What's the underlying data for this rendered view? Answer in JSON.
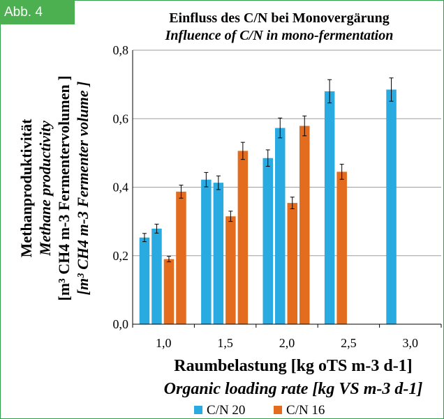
{
  "badge": "Abb. 4",
  "colors": {
    "cn20": "#29abe2",
    "cn16": "#e36c1e",
    "badge": "#4caf50",
    "grid": "#9e9e9e"
  },
  "chart_data": {
    "type": "bar",
    "title": "Einfluss des C/N bei Monovergärung",
    "subtitle": "Influence of C/N in mono-fermentation",
    "xlabel": "Raumbelastung [kg oTS m-3 d-1]",
    "xlabel_en": "Organic loading rate [kg VS m-3 d-1]",
    "ylabel": "Methanproduktivität",
    "ylabel_en": "Methane productivity",
    "yunit": "[m³ CH4 m-3 Fermentervolumen ]",
    "yunit_en": "[m³ CH4 m-3 Fermenter volume ]",
    "categories": [
      "1,0",
      "1,5",
      "2,0",
      "2,5",
      "3,0"
    ],
    "yticks": [
      "0,0",
      "0,2",
      "0,4",
      "0,6",
      "0,8"
    ],
    "ylim": [
      0,
      0.8
    ],
    "grid": true,
    "legend_position": "bottom",
    "series": [
      {
        "name": "C/N 20"
      },
      {
        "name": "C/N 16"
      }
    ],
    "bars": [
      {
        "category": "1,0",
        "series": "C/N 20",
        "value": 0.253,
        "error": 0.012
      },
      {
        "category": "1,0",
        "series": "C/N 20",
        "value": 0.279,
        "error": 0.013
      },
      {
        "category": "1,0",
        "series": "C/N 16",
        "value": 0.19,
        "error": 0.008
      },
      {
        "category": "1,0",
        "series": "C/N 16",
        "value": 0.387,
        "error": 0.019
      },
      {
        "category": "1,5",
        "series": "C/N 20",
        "value": 0.422,
        "error": 0.021
      },
      {
        "category": "1,5",
        "series": "C/N 20",
        "value": 0.413,
        "error": 0.02
      },
      {
        "category": "1,5",
        "series": "C/N 16",
        "value": 0.315,
        "error": 0.015
      },
      {
        "category": "1,5",
        "series": "C/N 16",
        "value": 0.506,
        "error": 0.025
      },
      {
        "category": "2,0",
        "series": "C/N 20",
        "value": 0.485,
        "error": 0.024
      },
      {
        "category": "2,0",
        "series": "C/N 20",
        "value": 0.573,
        "error": 0.029
      },
      {
        "category": "2,0",
        "series": "C/N 16",
        "value": 0.354,
        "error": 0.017
      },
      {
        "category": "2,0",
        "series": "C/N 16",
        "value": 0.579,
        "error": 0.029
      },
      {
        "category": "2,5",
        "series": "C/N 20",
        "value": 0.68,
        "error": 0.034
      },
      {
        "category": "2,5",
        "series": "C/N 16",
        "value": 0.445,
        "error": 0.022
      },
      {
        "category": "3,0",
        "series": "C/N 20",
        "value": 0.685,
        "error": 0.034
      }
    ]
  }
}
